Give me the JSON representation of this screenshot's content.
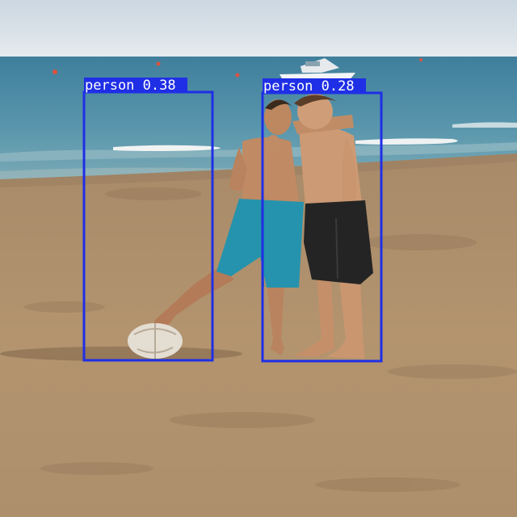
{
  "image": {
    "scene": "beach",
    "colors": {
      "sky": "#d9e2e8",
      "sea": "#4f8ea7",
      "sand": "#b39573",
      "box": "#1f2fe6",
      "label_bg": "#1f2fe6",
      "label_text": "#ffffff"
    }
  },
  "detections": [
    {
      "label": "person 0.38",
      "class": "person",
      "score": 0.38
    },
    {
      "label": "person 0.28",
      "class": "person",
      "score": 0.28
    }
  ]
}
